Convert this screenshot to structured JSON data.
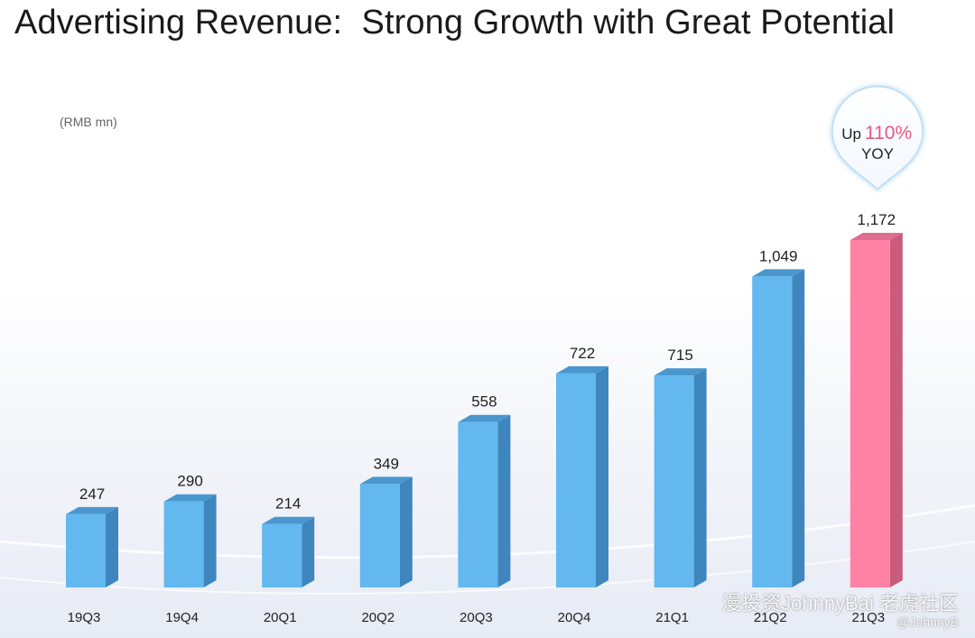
{
  "title": "Advertising Revenue:  Strong Growth with Great Potential",
  "unit_label": "(RMB mn)",
  "callout": {
    "prefix": "Up",
    "value": "110%",
    "suffix": "YOY",
    "value_color": "#e8577f"
  },
  "colors": {
    "bar_front": "#63b8ef",
    "bar_side": "#3f86bf",
    "bar_top": "#4a97cd",
    "highlight_front": "#ff82a5",
    "highlight_side": "#c85c7c",
    "highlight_top": "#e06e90"
  },
  "watermark": {
    "line1": "漫投资JohnnyBai 老虎社区",
    "line2": "@JohnnyB"
  },
  "chart_data": {
    "type": "bar",
    "title": "Advertising Revenue:  Strong Growth with Great Potential",
    "ylabel": "(RMB mn)",
    "xlabel": "",
    "categories": [
      "19Q3",
      "19Q4",
      "20Q1",
      "20Q2",
      "20Q3",
      "20Q4",
      "21Q1",
      "21Q2",
      "21Q3"
    ],
    "values": [
      247,
      290,
      214,
      349,
      558,
      722,
      715,
      1049,
      1172
    ],
    "value_labels": [
      "247",
      "290",
      "214",
      "349",
      "558",
      "722",
      "715",
      "1,049",
      "1,172"
    ],
    "highlight_index": 8,
    "grid": false,
    "style": "3d"
  }
}
